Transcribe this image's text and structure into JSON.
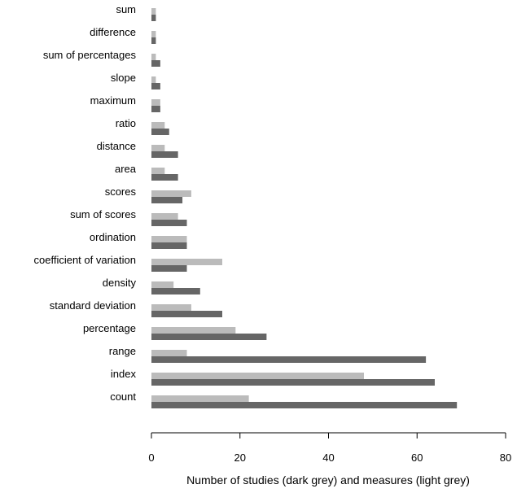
{
  "chart_data": {
    "type": "bar",
    "orientation": "horizontal",
    "categories": [
      "sum",
      "difference",
      "sum of percentages",
      "slope",
      "maximum",
      "ratio",
      "distance",
      "area",
      "scores",
      "sum of scores",
      "ordination",
      "coefficient of variation",
      "density",
      "standard deviation",
      "percentage",
      "range",
      "index",
      "count"
    ],
    "series": [
      {
        "values": [
          1,
          1,
          1,
          1,
          2,
          3,
          3,
          3,
          9,
          6,
          8,
          16,
          5,
          9,
          19,
          8,
          48,
          22
        ],
        "color": "#bbbbbb"
      },
      {
        "values": [
          1,
          1,
          2,
          2,
          2,
          4,
          6,
          6,
          7,
          8,
          8,
          8,
          11,
          16,
          26,
          62,
          64,
          69
        ],
        "color": "#666666"
      }
    ],
    "xlabel": "Number of studies (dark grey) and measures (light grey)",
    "xlim": [
      0,
      80
    ],
    "xticks": [
      "0",
      "20",
      "40",
      "60",
      "80"
    ],
    "grid": false,
    "legend": "none"
  }
}
